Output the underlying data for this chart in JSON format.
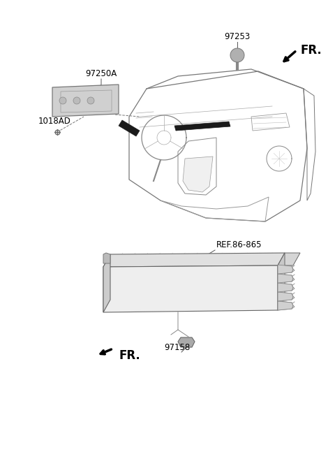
{
  "bg_color": "#ffffff",
  "line_color": "#555555",
  "label_color": "#000000",
  "font_size": 8.5,
  "font_size_fr": 12,
  "s1": {
    "lbl_97250A": "97250A",
    "lbl_97253": "97253",
    "lbl_1018AD": "1018AD",
    "fr": "FR."
  },
  "s2": {
    "lbl_ref": "REF.86-865",
    "lbl_97158": "97158",
    "fr": "FR."
  }
}
